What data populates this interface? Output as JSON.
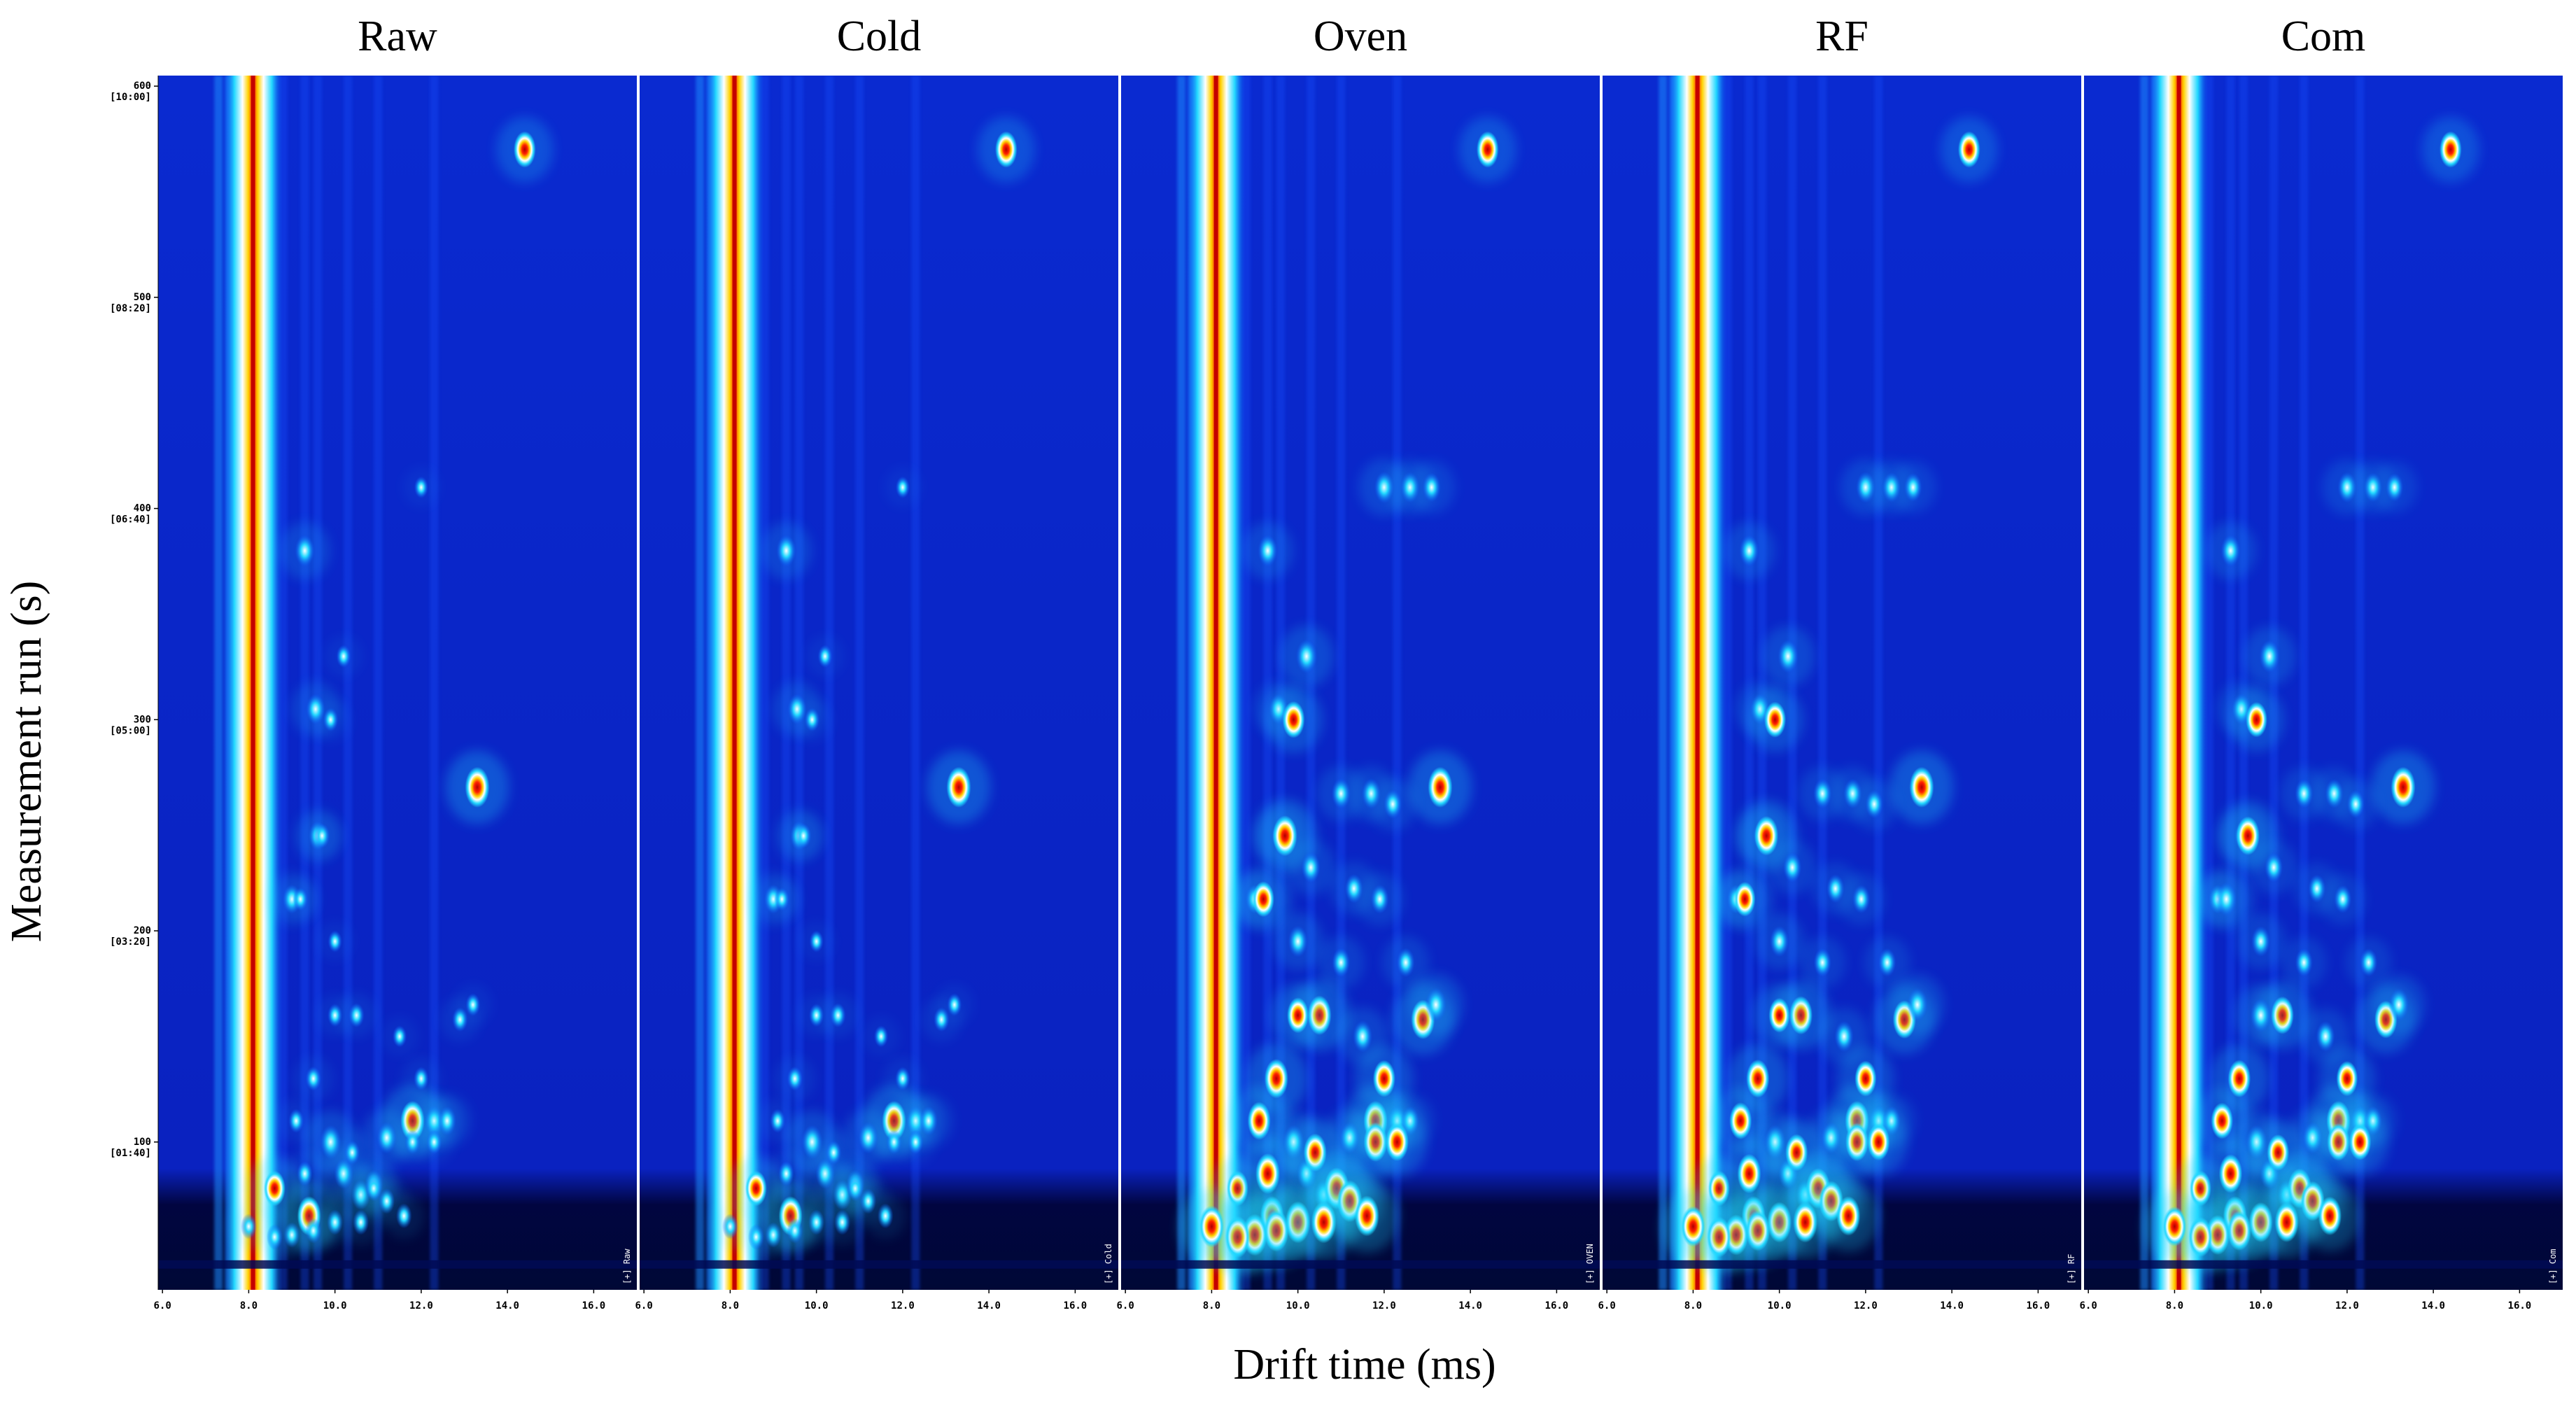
{
  "chart_data": {
    "type": "heatmap",
    "title": "",
    "xlabel": "Drift time (ms)",
    "ylabel": "Measurement run (s)",
    "xlim": [
      5.9,
      17.0
    ],
    "ylim": [
      30,
      605
    ],
    "x_ticks": [
      "6.0",
      "8.0",
      "10.0",
      "12.0",
      "14.0",
      "16.0"
    ],
    "y_ticks": [
      {
        "value": 100,
        "label": "100",
        "time": "[01:40]"
      },
      {
        "value": 200,
        "label": "200",
        "time": "[03:20]"
      },
      {
        "value": 300,
        "label": "300",
        "time": "[05:00]"
      },
      {
        "value": 400,
        "label": "400",
        "time": "[06:40]"
      },
      {
        "value": 500,
        "label": "500",
        "time": "[08:20]"
      },
      {
        "value": 600,
        "label": "600",
        "time": "[10:00]"
      }
    ],
    "colormap": [
      "#00008c",
      "#0022e0",
      "#0a5aff",
      "#22d8ff",
      "#ffffff",
      "#ffd200",
      "#ff2000",
      "#b00000"
    ],
    "background_color": "#0b29c9",
    "rip_drift_ms": 8.1,
    "panels": [
      {
        "name": "Raw",
        "tag": "[+] Raw",
        "intensity": 0.4
      },
      {
        "name": "Cold",
        "tag": "[+] Cold",
        "intensity": 0.4
      },
      {
        "name": "Oven",
        "tag": "[+] OVEN",
        "intensity": 1.0
      },
      {
        "name": "RF",
        "tag": "[+] RF",
        "intensity": 0.95
      },
      {
        "name": "Com",
        "tag": "[+] Com",
        "intensity": 0.92
      }
    ],
    "peaks": [
      {
        "x": 14.4,
        "y": 570,
        "i": 0.78
      },
      {
        "x": 13.3,
        "y": 268,
        "i": 0.95
      },
      {
        "x": 9.3,
        "y": 380,
        "i": 0.6
      },
      {
        "x": 9.55,
        "y": 305,
        "i": 0.55
      },
      {
        "x": 9.6,
        "y": 245,
        "i": 0.5
      },
      {
        "x": 9.0,
        "y": 215,
        "i": 0.5
      },
      {
        "x": 11.8,
        "y": 110,
        "i": 0.92
      },
      {
        "x": 11.2,
        "y": 102,
        "i": 0.6
      },
      {
        "x": 12.3,
        "y": 110,
        "i": 0.55
      },
      {
        "x": 12.6,
        "y": 110,
        "i": 0.5
      },
      {
        "x": 9.4,
        "y": 65,
        "i": 0.9
      },
      {
        "x": 8.6,
        "y": 78,
        "i": 0.75
      },
      {
        "x": 9.9,
        "y": 100,
        "i": 0.7
      },
      {
        "x": 10.2,
        "y": 85,
        "i": 0.55
      },
      {
        "x": 10.6,
        "y": 75,
        "i": 0.55
      },
      {
        "x": 10.9,
        "y": 80,
        "i": 0.5
      }
    ],
    "processed_peaks": [
      {
        "x": 9.7,
        "y": 245,
        "i": 0.95
      },
      {
        "x": 9.9,
        "y": 300,
        "i": 0.8
      },
      {
        "x": 10.2,
        "y": 330,
        "i": 0.7
      },
      {
        "x": 9.2,
        "y": 215,
        "i": 0.75
      },
      {
        "x": 10.0,
        "y": 195,
        "i": 0.6
      },
      {
        "x": 10.3,
        "y": 230,
        "i": 0.55
      },
      {
        "x": 10.5,
        "y": 160,
        "i": 0.9
      },
      {
        "x": 10.0,
        "y": 160,
        "i": 0.75
      },
      {
        "x": 12.9,
        "y": 158,
        "i": 0.9
      },
      {
        "x": 13.2,
        "y": 165,
        "i": 0.7
      },
      {
        "x": 12.0,
        "y": 130,
        "i": 0.8
      },
      {
        "x": 11.5,
        "y": 150,
        "i": 0.6
      },
      {
        "x": 9.5,
        "y": 130,
        "i": 0.9
      },
      {
        "x": 9.1,
        "y": 110,
        "i": 0.85
      },
      {
        "x": 9.3,
        "y": 85,
        "i": 0.95
      },
      {
        "x": 10.4,
        "y": 95,
        "i": 0.85
      },
      {
        "x": 11.8,
        "y": 100,
        "i": 0.9
      },
      {
        "x": 12.3,
        "y": 100,
        "i": 0.85
      },
      {
        "x": 10.9,
        "y": 78,
        "i": 1.0
      },
      {
        "x": 11.2,
        "y": 72,
        "i": 1.0
      },
      {
        "x": 10.0,
        "y": 62,
        "i": 1.0
      },
      {
        "x": 10.6,
        "y": 62,
        "i": 1.0
      },
      {
        "x": 11.6,
        "y": 65,
        "i": 0.95
      },
      {
        "x": 9.5,
        "y": 58,
        "i": 1.0
      },
      {
        "x": 9.0,
        "y": 56,
        "i": 1.0
      },
      {
        "x": 8.6,
        "y": 55,
        "i": 1.0
      },
      {
        "x": 8.0,
        "y": 60,
        "i": 1.0
      },
      {
        "x": 12.0,
        "y": 410,
        "i": 0.6
      },
      {
        "x": 12.6,
        "y": 410,
        "i": 0.55
      },
      {
        "x": 13.1,
        "y": 410,
        "i": 0.5
      },
      {
        "x": 11.0,
        "y": 265,
        "i": 0.55
      },
      {
        "x": 11.7,
        "y": 265,
        "i": 0.55
      },
      {
        "x": 12.2,
        "y": 260,
        "i": 0.5
      },
      {
        "x": 11.3,
        "y": 220,
        "i": 0.5
      },
      {
        "x": 11.9,
        "y": 215,
        "i": 0.5
      },
      {
        "x": 12.5,
        "y": 185,
        "i": 0.5
      },
      {
        "x": 11.0,
        "y": 185,
        "i": 0.5
      }
    ]
  }
}
